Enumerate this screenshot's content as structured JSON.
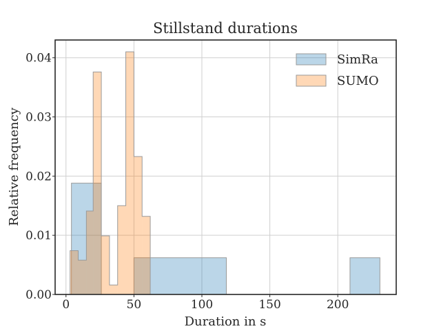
{
  "chart_data": {
    "type": "histogram",
    "title": "Stillstand durations",
    "xlabel": "Duration in s",
    "ylabel": "Relative frequency",
    "xlim": [
      -8,
      243
    ],
    "ylim": [
      0,
      0.043
    ],
    "xticks": [
      0,
      50,
      100,
      150,
      200
    ],
    "xtick_labels": [
      "0",
      "50",
      "100",
      "150",
      "200"
    ],
    "yticks": [
      0,
      0.01,
      0.02,
      0.03,
      0.04
    ],
    "ytick_labels": [
      "0.00",
      "0.01",
      "0.02",
      "0.03",
      "0.04"
    ],
    "grid": true,
    "legend_position": "top-right",
    "series": [
      {
        "name": "SimRa",
        "color": "#1f77b4",
        "opacity": 0.3,
        "bins": [
          {
            "x0": 4,
            "x1": 26,
            "y": 0.0188
          },
          {
            "x0": 26,
            "x1": 50,
            "y": 0.0
          },
          {
            "x0": 50,
            "x1": 118,
            "y": 0.0062
          },
          {
            "x0": 118,
            "x1": 209,
            "y": 0.0
          },
          {
            "x0": 209,
            "x1": 231,
            "y": 0.0062
          }
        ]
      },
      {
        "name": "SUMO",
        "color": "#ff7f0e",
        "opacity": 0.3,
        "bins": [
          {
            "x0": 3,
            "x1": 9,
            "y": 0.0074
          },
          {
            "x0": 9,
            "x1": 15,
            "y": 0.0058
          },
          {
            "x0": 15,
            "x1": 20,
            "y": 0.0141
          },
          {
            "x0": 20,
            "x1": 26,
            "y": 0.0376
          },
          {
            "x0": 26,
            "x1": 32,
            "y": 0.0099
          },
          {
            "x0": 32,
            "x1": 38,
            "y": 0.0016
          },
          {
            "x0": 38,
            "x1": 44,
            "y": 0.015
          },
          {
            "x0": 44,
            "x1": 50,
            "y": 0.041
          },
          {
            "x0": 50,
            "x1": 56,
            "y": 0.0233
          },
          {
            "x0": 56,
            "x1": 62,
            "y": 0.0132
          }
        ]
      }
    ]
  }
}
